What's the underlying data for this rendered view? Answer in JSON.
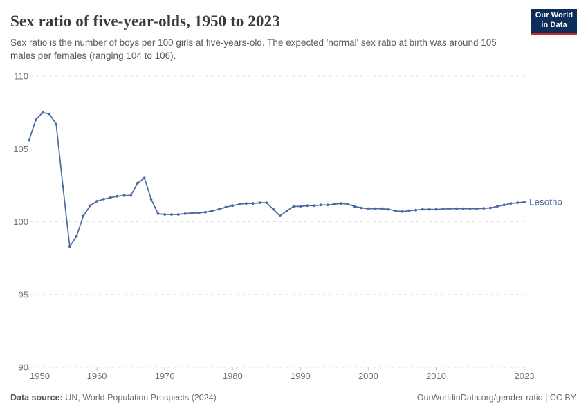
{
  "header": {
    "title": "Sex ratio of five-year-olds, 1950 to 2023",
    "subtitle": "Sex ratio is the number of boys per 100 girls at five-years-old. The expected 'normal' sex ratio at birth was around 105 males per females (ranging 104 to 106)."
  },
  "logo": {
    "line1": "Our World",
    "line2": "in Data"
  },
  "chart_data": {
    "type": "line",
    "title": "Sex ratio of five-year-olds, 1950 to 2023",
    "xlabel": "",
    "ylabel": "",
    "xlim": [
      1950,
      2023
    ],
    "ylim": [
      90,
      110
    ],
    "yticks": [
      90,
      95,
      100,
      105,
      110
    ],
    "xticks": [
      1950,
      1960,
      1970,
      1980,
      1990,
      2000,
      2010,
      2023
    ],
    "grid": "dashed-horizontal",
    "legend_position": "end-of-line-label",
    "line_color": "#4a69a0",
    "axis_text_color": "#6e6e6e",
    "grid_color": "#e2e2e2",
    "x": [
      1950,
      1951,
      1952,
      1953,
      1954,
      1955,
      1956,
      1957,
      1958,
      1959,
      1960,
      1961,
      1962,
      1963,
      1964,
      1965,
      1966,
      1967,
      1968,
      1969,
      1970,
      1971,
      1972,
      1973,
      1974,
      1975,
      1976,
      1977,
      1978,
      1979,
      1980,
      1981,
      1982,
      1983,
      1984,
      1985,
      1986,
      1987,
      1988,
      1989,
      1990,
      1991,
      1992,
      1993,
      1994,
      1995,
      1996,
      1997,
      1998,
      1999,
      2000,
      2001,
      2002,
      2003,
      2004,
      2005,
      2006,
      2007,
      2008,
      2009,
      2010,
      2011,
      2012,
      2013,
      2014,
      2015,
      2016,
      2017,
      2018,
      2019,
      2020,
      2021,
      2022,
      2023
    ],
    "series": [
      {
        "name": "Lesotho",
        "values": [
          105.6,
          107.0,
          107.5,
          107.4,
          106.7,
          102.4,
          98.3,
          99.0,
          100.4,
          101.1,
          101.4,
          101.55,
          101.65,
          101.75,
          101.8,
          101.8,
          102.65,
          103.0,
          101.55,
          100.55,
          100.5,
          100.5,
          100.5,
          100.55,
          100.6,
          100.6,
          100.65,
          100.75,
          100.85,
          101.0,
          101.1,
          101.2,
          101.25,
          101.25,
          101.3,
          101.3,
          100.85,
          100.4,
          100.75,
          101.05,
          101.05,
          101.1,
          101.1,
          101.15,
          101.15,
          101.2,
          101.25,
          101.2,
          101.05,
          100.95,
          100.9,
          100.9,
          100.9,
          100.85,
          100.75,
          100.7,
          100.75,
          100.8,
          100.85,
          100.85,
          100.85,
          100.87,
          100.9,
          100.9,
          100.9,
          100.9,
          100.9,
          100.92,
          100.95,
          101.05,
          101.15,
          101.25,
          101.3,
          101.35
        ]
      }
    ]
  },
  "footer": {
    "source_label": "Data source:",
    "source_value": " UN, World Population Prospects (2024)",
    "credit_link": "OurWorldinData.org/gender-ratio",
    "credit_sep": " | ",
    "credit_license": "CC BY"
  }
}
